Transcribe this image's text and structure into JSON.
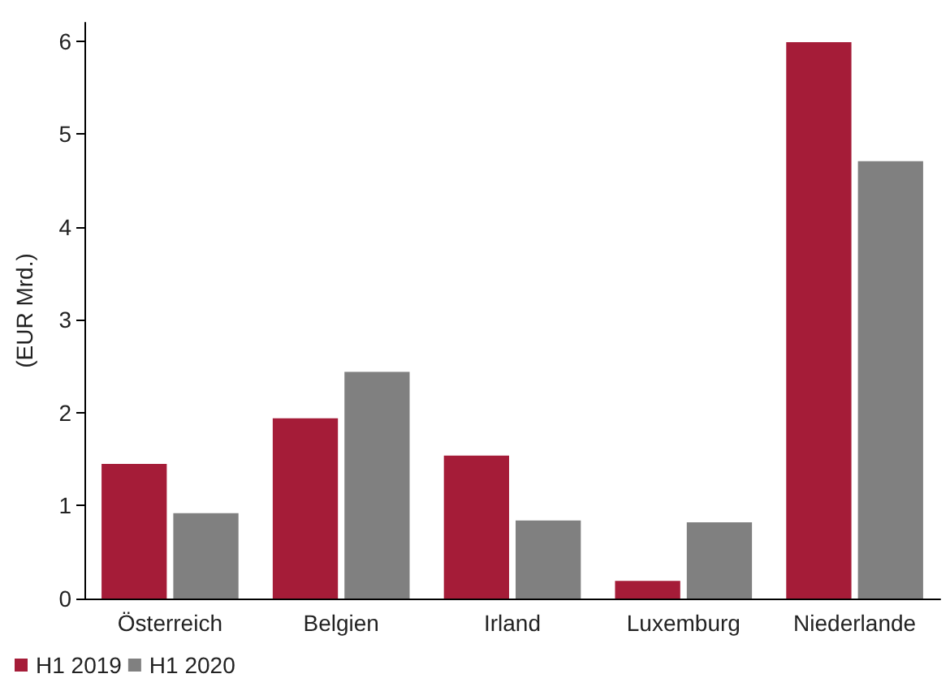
{
  "chart_data": {
    "type": "bar",
    "ylabel": "(EUR Mrd.)",
    "categories": [
      "Österreich",
      "Belgien",
      "Irland",
      "Luxemburg",
      "Niederlande"
    ],
    "series": [
      {
        "name": "H1 2019",
        "color": "#a51c38",
        "values": [
          1.45,
          1.94,
          1.54,
          0.19,
          5.99
        ]
      },
      {
        "name": "H1 2020",
        "color": "#808080",
        "values": [
          0.92,
          2.44,
          0.84,
          0.82,
          4.71
        ]
      }
    ],
    "ylim": [
      0,
      6.2
    ],
    "yticks": [
      0,
      1,
      2,
      3,
      4,
      5,
      6
    ],
    "grid": false,
    "legend": "bottom left"
  }
}
